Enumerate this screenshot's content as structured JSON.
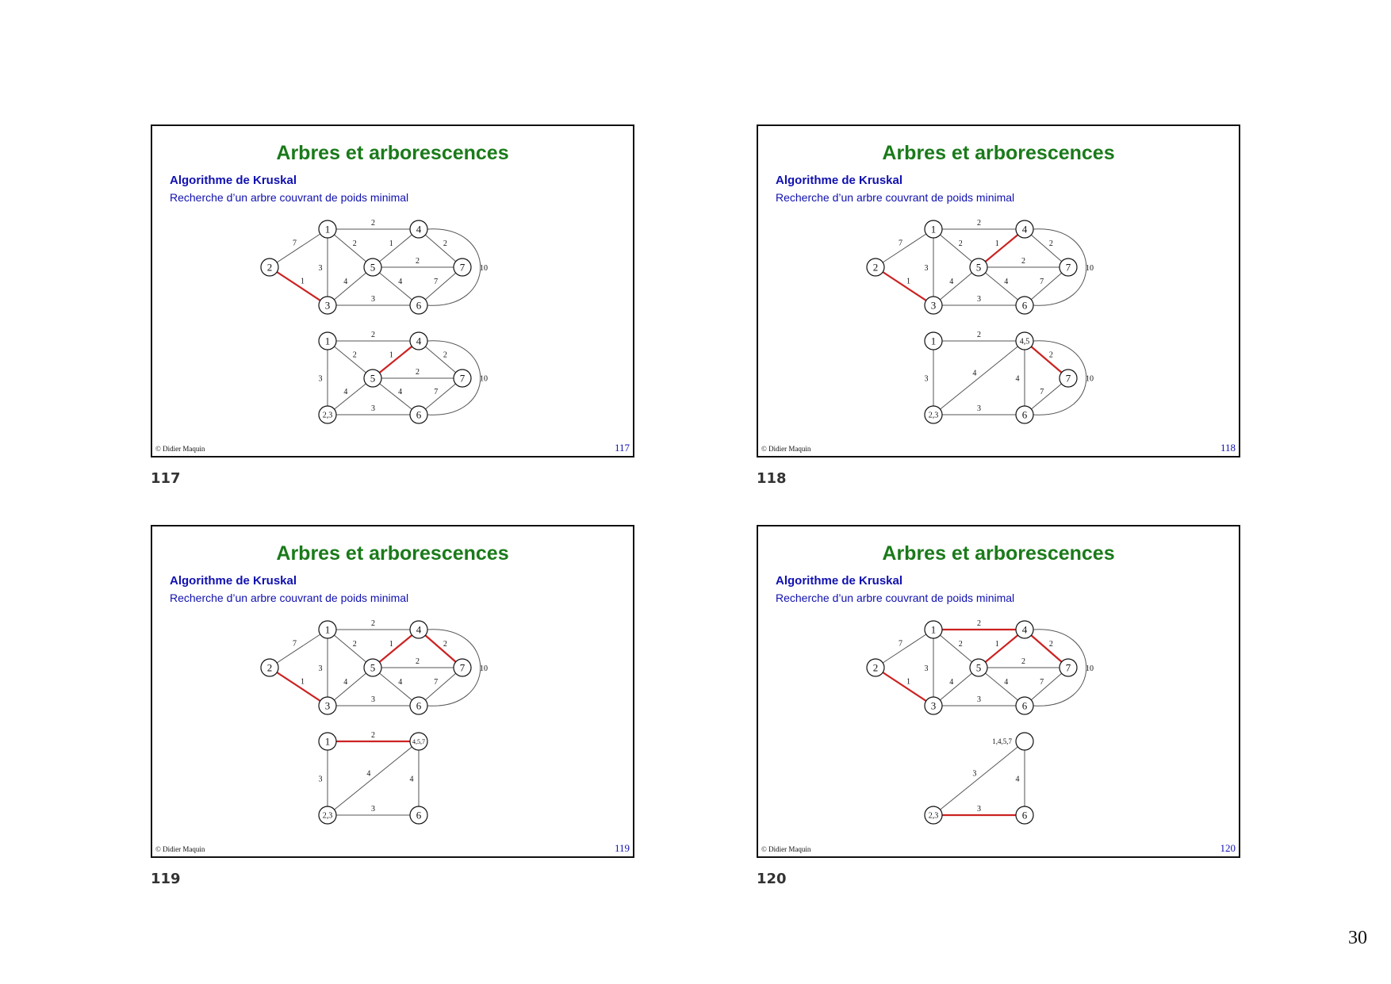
{
  "slides": [
    {
      "title": "Arbres et arborescences",
      "subtitle": "Algorithme de Kruskal",
      "subtitle2": "Recherche d’un arbre couvrant de poids minimal",
      "copyright": "© Didier Maquin",
      "number": "117",
      "caption": "117"
    },
    {
      "title": "Arbres et arborescences",
      "subtitle": "Algorithme de Kruskal",
      "subtitle2": "Recherche d’un arbre couvrant de poids minimal",
      "copyright": "© Didier Maquin",
      "number": "118",
      "caption": "118"
    },
    {
      "title": "Arbres et arborescences",
      "subtitle": "Algorithme de Kruskal",
      "subtitle2": "Recherche d’un arbre couvrant de poids minimal",
      "copyright": "© Didier Maquin",
      "number": "119",
      "caption": "119"
    },
    {
      "title": "Arbres et arborescences",
      "subtitle": "Algorithme de Kruskal",
      "subtitle2": "Recherche d’un arbre couvrant de poids minimal",
      "copyright": "© Didier Maquin",
      "number": "120",
      "caption": "120"
    }
  ],
  "page_number": "30",
  "colors": {
    "highlight": "#cc2222",
    "edge": "#555555",
    "title": "#1a7a1a",
    "subtitle": "#1010b0"
  },
  "graphs": {
    "full": {
      "nodes": [
        {
          "id": "1",
          "label": "1"
        },
        {
          "id": "2",
          "label": "2"
        },
        {
          "id": "3",
          "label": "3"
        },
        {
          "id": "4",
          "label": "4"
        },
        {
          "id": "5",
          "label": "5"
        },
        {
          "id": "6",
          "label": "6"
        },
        {
          "id": "7",
          "label": "7"
        }
      ],
      "edges": [
        {
          "from": "1",
          "to": "4",
          "weight": "2"
        },
        {
          "from": "1",
          "to": "2",
          "weight": "7"
        },
        {
          "from": "1",
          "to": "5",
          "weight": "2"
        },
        {
          "from": "1",
          "to": "3",
          "weight": "3"
        },
        {
          "from": "4",
          "to": "5",
          "weight": "1"
        },
        {
          "from": "4",
          "to": "7",
          "weight": "2"
        },
        {
          "from": "5",
          "to": "7",
          "weight": "2"
        },
        {
          "from": "2",
          "to": "3",
          "weight": "1"
        },
        {
          "from": "3",
          "to": "5",
          "weight": "4"
        },
        {
          "from": "5",
          "to": "6",
          "weight": "4"
        },
        {
          "from": "7",
          "to": "6",
          "weight": "7"
        },
        {
          "from": "3",
          "to": "6",
          "weight": "3"
        },
        {
          "from": "4",
          "to": "6",
          "weight": "10"
        }
      ]
    },
    "s117_reduced": {
      "nodes": [
        {
          "id": "1",
          "label": "1"
        },
        {
          "id": "4",
          "label": "4"
        },
        {
          "id": "5",
          "label": "5"
        },
        {
          "id": "7",
          "label": "7"
        },
        {
          "id": "23",
          "label": "2,3"
        },
        {
          "id": "6",
          "label": "6"
        }
      ],
      "edges": [
        {
          "from": "1",
          "to": "4",
          "weight": "2"
        },
        {
          "from": "1",
          "to": "5",
          "weight": "2"
        },
        {
          "from": "1",
          "to": "23",
          "weight": "3"
        },
        {
          "from": "4",
          "to": "5",
          "weight": "1"
        },
        {
          "from": "4",
          "to": "7",
          "weight": "2"
        },
        {
          "from": "5",
          "to": "7",
          "weight": "2"
        },
        {
          "from": "23",
          "to": "5",
          "weight": "4"
        },
        {
          "from": "5",
          "to": "6",
          "weight": "4"
        },
        {
          "from": "7",
          "to": "6",
          "weight": "7"
        },
        {
          "from": "23",
          "to": "6",
          "weight": "3"
        },
        {
          "from": "4",
          "to": "6",
          "weight": "10"
        }
      ]
    },
    "s118_reduced": {
      "nodes": [
        {
          "id": "1",
          "label": "1"
        },
        {
          "id": "45",
          "label": "4,5"
        },
        {
          "id": "7",
          "label": "7"
        },
        {
          "id": "23",
          "label": "2,3"
        },
        {
          "id": "6",
          "label": "6"
        }
      ],
      "edges": [
        {
          "from": "1",
          "to": "45",
          "weight": "2"
        },
        {
          "from": "1",
          "to": "23",
          "weight": "3"
        },
        {
          "from": "23",
          "to": "45",
          "weight": "4"
        },
        {
          "from": "45",
          "to": "6",
          "weight": "4"
        },
        {
          "from": "45",
          "to": "7",
          "weight": "2"
        },
        {
          "from": "7",
          "to": "6",
          "weight": "7"
        },
        {
          "from": "23",
          "to": "6",
          "weight": "3"
        },
        {
          "from": "45",
          "to": "6",
          "weight": "10"
        }
      ]
    },
    "s119_reduced": {
      "nodes": [
        {
          "id": "1",
          "label": "1"
        },
        {
          "id": "457",
          "label": "4,5,7"
        },
        {
          "id": "23",
          "label": "2,3"
        },
        {
          "id": "6",
          "label": "6"
        }
      ],
      "edges": [
        {
          "from": "1",
          "to": "457",
          "weight": "2"
        },
        {
          "from": "1",
          "to": "23",
          "weight": "3"
        },
        {
          "from": "23",
          "to": "457",
          "weight": "4"
        },
        {
          "from": "457",
          "to": "6",
          "weight": "4"
        },
        {
          "from": "23",
          "to": "6",
          "weight": "3"
        }
      ]
    },
    "s120_reduced": {
      "nodes": [
        {
          "id": "1457",
          "label": "",
          "outside_label": "1,4,5,7"
        },
        {
          "id": "23",
          "label": "2,3"
        },
        {
          "id": "6",
          "label": "6"
        }
      ],
      "edges": [
        {
          "from": "23",
          "to": "1457",
          "weight": "3"
        },
        {
          "from": "1457",
          "to": "6",
          "weight": "4"
        },
        {
          "from": "23",
          "to": "6",
          "weight": "3"
        }
      ]
    }
  },
  "slide_graphs": [
    {
      "top": "full",
      "top_highlight": [
        [
          "2",
          "3"
        ]
      ],
      "bottom": "s117_reduced",
      "bottom_highlight": [
        [
          "4",
          "5"
        ]
      ]
    },
    {
      "top": "full",
      "top_highlight": [
        [
          "2",
          "3"
        ],
        [
          "4",
          "5"
        ]
      ],
      "bottom": "s118_reduced",
      "bottom_highlight": [
        [
          "45",
          "7"
        ]
      ]
    },
    {
      "top": "full",
      "top_highlight": [
        [
          "2",
          "3"
        ],
        [
          "4",
          "5"
        ],
        [
          "4",
          "7"
        ]
      ],
      "bottom": "s119_reduced",
      "bottom_highlight": [
        [
          "1",
          "457"
        ]
      ]
    },
    {
      "top": "full",
      "top_highlight": [
        [
          "2",
          "3"
        ],
        [
          "4",
          "5"
        ],
        [
          "4",
          "7"
        ],
        [
          "1",
          "4"
        ]
      ],
      "bottom": "s120_reduced",
      "bottom_highlight": [
        [
          "23",
          "6"
        ]
      ]
    }
  ]
}
